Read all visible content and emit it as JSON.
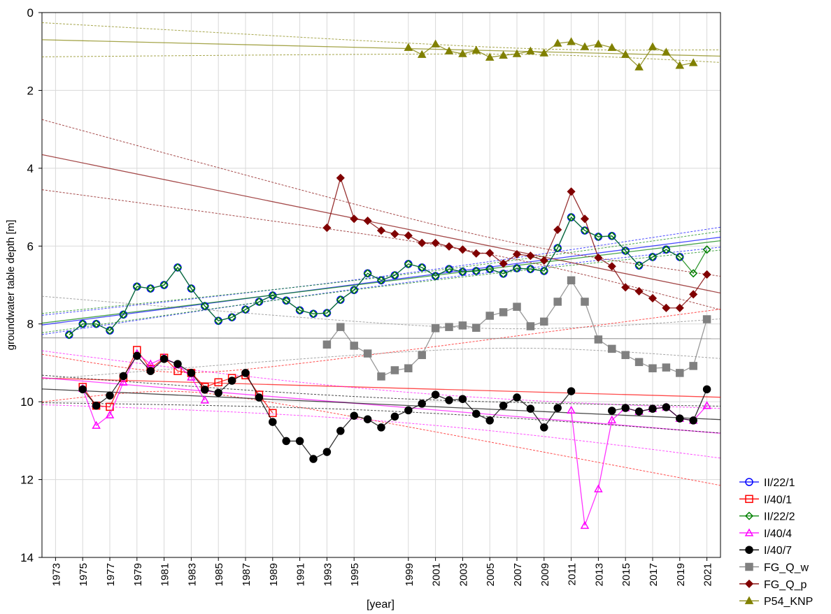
{
  "chart_data": {
    "type": "line",
    "x_label": "[year]",
    "y_label": "groundwater table depth [m]",
    "xlim": [
      1972,
      2022
    ],
    "xticks": [
      1973,
      1975,
      1977,
      1979,
      1981,
      1983,
      1985,
      1987,
      1989,
      1991,
      1993,
      1995,
      1999,
      2001,
      2003,
      2005,
      2007,
      2009,
      2011,
      2013,
      2015,
      2017,
      2019,
      2021
    ],
    "ylim": [
      0,
      14
    ],
    "y_inverted": true,
    "yticks": [
      0,
      2,
      4,
      6,
      8,
      10,
      12,
      14
    ],
    "grid": true,
    "trend_lines": true,
    "legend": "lower right",
    "x": [
      1974,
      1975,
      1976,
      1977,
      1978,
      1979,
      1980,
      1981,
      1982,
      1983,
      1984,
      1985,
      1986,
      1987,
      1988,
      1989,
      1990,
      1991,
      1992,
      1993,
      1994,
      1995,
      1996,
      1997,
      1998,
      1999,
      2000,
      2001,
      2002,
      2003,
      2004,
      2005,
      2006,
      2007,
      2008,
      2009,
      2010,
      2011,
      2012,
      2013,
      2014,
      2015,
      2016,
      2017,
      2018,
      2019,
      2020,
      2021
    ],
    "series": [
      {
        "name": "II/22/1",
        "color": "#0000ff",
        "marker": "circle",
        "filled": false,
        "values": [
          8.28,
          8.0,
          8.0,
          8.17,
          7.76,
          7.04,
          7.09,
          7.0,
          6.55,
          7.09,
          7.54,
          7.92,
          7.83,
          7.63,
          7.43,
          7.27,
          7.4,
          7.65,
          7.74,
          7.72,
          7.38,
          7.13,
          6.7,
          6.88,
          6.75,
          6.46,
          6.55,
          6.77,
          6.59,
          6.66,
          6.64,
          6.59,
          6.71,
          6.57,
          6.59,
          6.64,
          6.05,
          5.26,
          5.6,
          5.76,
          5.74,
          6.12,
          6.5,
          6.28,
          6.09,
          6.28,
          null,
          null
        ]
      },
      {
        "name": "I/40/1",
        "color": "#ff0000",
        "marker": "square",
        "filled": false,
        "values": [
          null,
          9.62,
          10.1,
          10.13,
          9.39,
          8.67,
          9.16,
          8.87,
          9.21,
          9.26,
          9.62,
          9.5,
          9.39,
          9.32,
          9.82,
          10.29,
          null,
          null,
          null,
          null,
          null,
          null,
          null,
          null,
          null,
          null,
          null,
          null,
          null,
          null,
          null,
          null,
          null,
          null,
          null,
          null,
          null,
          null,
          null,
          null,
          null,
          null,
          null,
          null,
          null,
          null,
          null,
          null
        ]
      },
      {
        "name": "II/22/2",
        "color": "#008000",
        "marker": "diamond",
        "filled": false,
        "values": [
          8.28,
          8.0,
          8.0,
          8.17,
          7.76,
          7.04,
          7.09,
          7.0,
          6.55,
          7.09,
          7.54,
          7.92,
          7.83,
          7.63,
          7.43,
          7.27,
          7.4,
          7.65,
          7.74,
          7.72,
          7.38,
          7.13,
          6.7,
          6.88,
          6.75,
          6.46,
          6.55,
          6.77,
          6.59,
          6.66,
          6.64,
          6.59,
          6.71,
          6.57,
          6.59,
          6.64,
          6.05,
          5.26,
          5.6,
          5.76,
          5.74,
          6.12,
          6.5,
          6.28,
          6.09,
          6.28,
          6.7,
          6.09
        ]
      },
      {
        "name": "I/40/4",
        "color": "#ff00ff",
        "marker": "triangle",
        "filled": false,
        "values": [
          null,
          9.66,
          10.61,
          10.34,
          9.5,
          8.76,
          9.03,
          8.87,
          9.05,
          9.37,
          9.96,
          null,
          null,
          null,
          null,
          null,
          null,
          null,
          null,
          null,
          null,
          null,
          null,
          null,
          null,
          null,
          null,
          null,
          null,
          null,
          null,
          null,
          null,
          null,
          null,
          null,
          null,
          10.22,
          13.18,
          12.24,
          10.47,
          10.16,
          10.25,
          10.18,
          10.14,
          10.43,
          10.48,
          10.1
        ]
      },
      {
        "name": "I/40/7",
        "color": "#000000",
        "marker": "circle",
        "filled": true,
        "values": [
          null,
          9.68,
          10.1,
          9.84,
          9.34,
          8.82,
          9.21,
          8.9,
          9.03,
          9.26,
          9.69,
          9.77,
          9.46,
          9.26,
          9.89,
          10.52,
          11.01,
          11.01,
          11.47,
          11.29,
          10.75,
          10.36,
          10.45,
          10.66,
          10.38,
          10.22,
          10.05,
          9.82,
          9.96,
          9.93,
          10.31,
          10.48,
          10.1,
          9.89,
          10.18,
          10.66,
          10.16,
          9.73,
          null,
          null,
          10.23,
          10.16,
          10.25,
          10.18,
          10.14,
          10.43,
          10.48,
          9.68
        ]
      },
      {
        "name": "FG_Q_w",
        "color": "#808080",
        "marker": "square",
        "filled": true,
        "values": [
          null,
          null,
          null,
          null,
          null,
          null,
          null,
          null,
          null,
          null,
          null,
          null,
          null,
          null,
          null,
          null,
          null,
          null,
          null,
          8.53,
          8.08,
          8.56,
          8.76,
          9.35,
          9.19,
          9.14,
          8.8,
          8.11,
          8.08,
          8.04,
          8.1,
          7.79,
          7.7,
          7.56,
          8.06,
          7.94,
          7.43,
          6.88,
          7.43,
          8.4,
          8.64,
          8.8,
          8.98,
          9.14,
          9.12,
          9.26,
          9.08,
          7.88
        ]
      },
      {
        "name": "FG_Q_p",
        "color": "#800000",
        "marker": "diamond",
        "filled": true,
        "values": [
          null,
          null,
          null,
          null,
          null,
          null,
          null,
          null,
          null,
          null,
          null,
          null,
          null,
          null,
          null,
          null,
          null,
          null,
          null,
          5.53,
          4.25,
          5.3,
          5.35,
          5.6,
          5.69,
          5.73,
          5.92,
          5.92,
          6.01,
          6.09,
          6.19,
          6.18,
          6.45,
          6.21,
          6.25,
          6.37,
          5.58,
          4.6,
          5.3,
          6.3,
          6.52,
          7.06,
          7.16,
          7.34,
          7.59,
          7.59,
          7.24,
          6.73
        ]
      },
      {
        "name": "P54_KNP",
        "color": "#808000",
        "marker": "triangle",
        "filled": true,
        "values": [
          null,
          null,
          null,
          null,
          null,
          null,
          null,
          null,
          null,
          null,
          null,
          null,
          null,
          null,
          null,
          null,
          null,
          null,
          null,
          null,
          null,
          null,
          null,
          null,
          null,
          0.9,
          1.08,
          0.81,
          0.99,
          1.06,
          0.97,
          1.15,
          1.1,
          1.06,
          0.99,
          1.04,
          0.79,
          0.75,
          0.88,
          0.81,
          0.9,
          1.08,
          1.4,
          0.88,
          1.02,
          1.36,
          1.29,
          null
        ]
      }
    ]
  }
}
